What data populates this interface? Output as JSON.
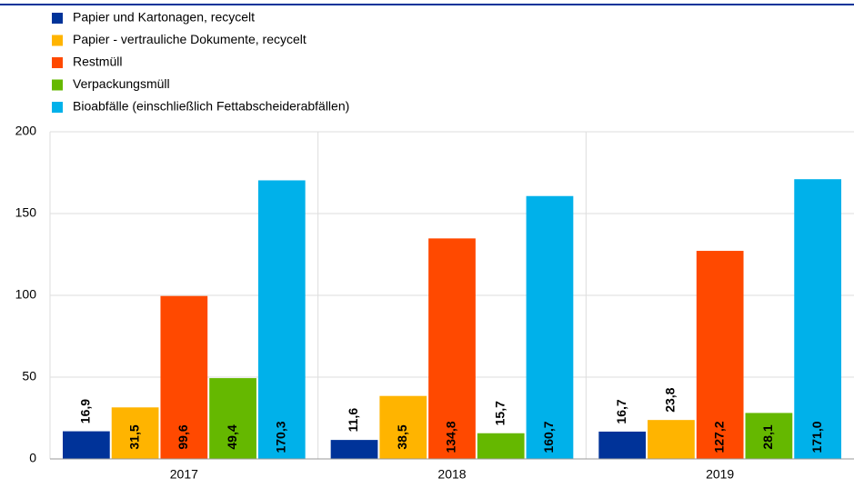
{
  "chart_data": {
    "type": "bar",
    "categories": [
      "2017",
      "2018",
      "2019"
    ],
    "series": [
      {
        "name": "Papier und Kartonagen, recycelt",
        "color": "#003399",
        "values": [
          16.9,
          11.6,
          16.7
        ],
        "value_labels": [
          "16,9",
          "11,6",
          "16,7"
        ]
      },
      {
        "name": "Papier - vertrauliche Dokumente, recycelt",
        "color": "#ffb400",
        "values": [
          31.5,
          38.5,
          23.8
        ],
        "value_labels": [
          "31,5",
          "38,5",
          "23,8"
        ]
      },
      {
        "name": "Restmüll",
        "color": "#ff4900",
        "values": [
          99.6,
          134.8,
          127.2
        ],
        "value_labels": [
          "99,6",
          "134,8",
          "127,2"
        ]
      },
      {
        "name": "Verpackungsmüll",
        "color": "#65b800",
        "values": [
          49.4,
          15.7,
          28.1
        ],
        "value_labels": [
          "49,4",
          "15,7",
          "28,1"
        ]
      },
      {
        "name": "Bioabfälle (einschließlich Fettabscheiderabfällen)",
        "color": "#00b1ea",
        "values": [
          170.3,
          160.7,
          171.0
        ],
        "value_labels": [
          "170,3",
          "160,7",
          "171,0"
        ]
      }
    ],
    "ylim": [
      0,
      200
    ],
    "yticks": [
      0,
      50,
      100,
      150,
      200
    ],
    "grid": true,
    "legend": "top-left"
  }
}
